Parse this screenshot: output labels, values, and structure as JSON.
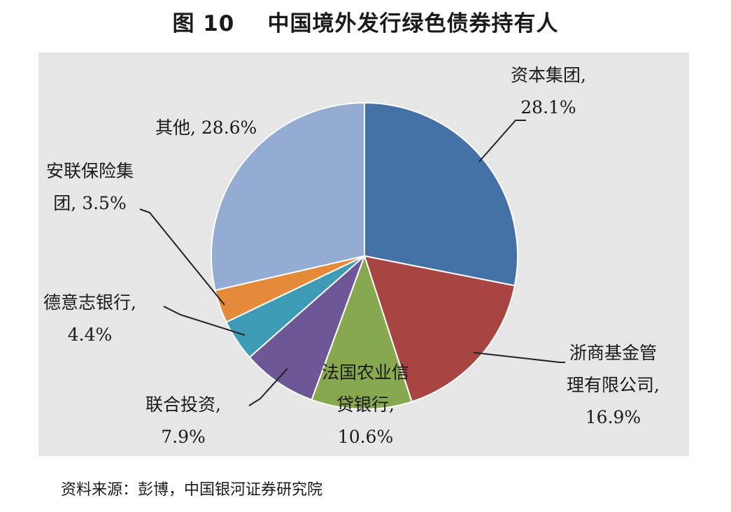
{
  "title": "图 10    中国境外发行绿色债券持有人",
  "source": "资料来源：彭博，中国银河证券研究院",
  "chart_data": {
    "type": "pie",
    "title": "图 10    中国境外发行绿色债券持有人",
    "slices": [
      {
        "label": "资本集团",
        "value": 28.1,
        "value_text": "28.1%",
        "color": "#4472a6",
        "lines": [
          "资本集团,",
          "28.1%"
        ]
      },
      {
        "label": "浙商基金管理有限公司",
        "value": 16.9,
        "value_text": "16.9%",
        "color": "#a84442",
        "lines": [
          "浙商基金管",
          "理有限公司,",
          "16.9%"
        ]
      },
      {
        "label": "法国农业信贷银行",
        "value": 10.6,
        "value_text": "10.6%",
        "color": "#87a84e",
        "lines": [
          "法国农业信",
          "贷银行,",
          "10.6%"
        ]
      },
      {
        "label": "联合投资",
        "value": 7.9,
        "value_text": "7.9%",
        "color": "#6e5797",
        "lines": [
          "联合投资,",
          "7.9%"
        ]
      },
      {
        "label": "德意志银行",
        "value": 4.4,
        "value_text": "4.4%",
        "color": "#3e9bb6",
        "lines": [
          "德意志银行,",
          "4.4%"
        ]
      },
      {
        "label": "安联保险集团",
        "value": 3.5,
        "value_text": "3.5%",
        "color": "#e58a3a",
        "lines": [
          "安联保险集",
          "团, 3.5%"
        ]
      },
      {
        "label": "其他",
        "value": 28.6,
        "value_text": "28.6%",
        "color": "#94abd3",
        "lines": [
          "其他, 28.6%"
        ]
      }
    ],
    "start_angle_deg": 0,
    "direction": "clockwise"
  }
}
